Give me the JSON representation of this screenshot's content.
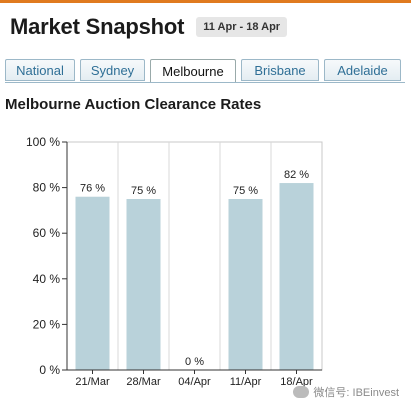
{
  "header": {
    "title": "Market Snapshot",
    "date_range": "11 Apr - 18 Apr"
  },
  "tabs": [
    {
      "label": "National",
      "active": false
    },
    {
      "label": "Sydney",
      "active": false
    },
    {
      "label": "Melbourne",
      "active": true
    },
    {
      "label": "Brisbane",
      "active": false
    },
    {
      "label": "Adelaide",
      "active": false
    }
  ],
  "watermark": "微信号: IBEinvest",
  "colors": {
    "bar": "#b9d2da",
    "accent": "#e07a1f",
    "tab_text": "#2f6f96"
  },
  "chart_data": {
    "type": "bar",
    "title": "Melbourne Auction Clearance Rates",
    "categories": [
      "21/Mar",
      "28/Mar",
      "04/Apr",
      "11/Apr",
      "18/Apr"
    ],
    "values": [
      76,
      75,
      0,
      75,
      82
    ],
    "data_labels": [
      "76 %",
      "75 %",
      "0 %",
      "75 %",
      "82 %"
    ],
    "yticks": [
      "0 %",
      "20 %",
      "40 %",
      "60 %",
      "80 %",
      "100 %"
    ],
    "ylim": [
      0,
      100
    ],
    "grid": "vertical"
  }
}
